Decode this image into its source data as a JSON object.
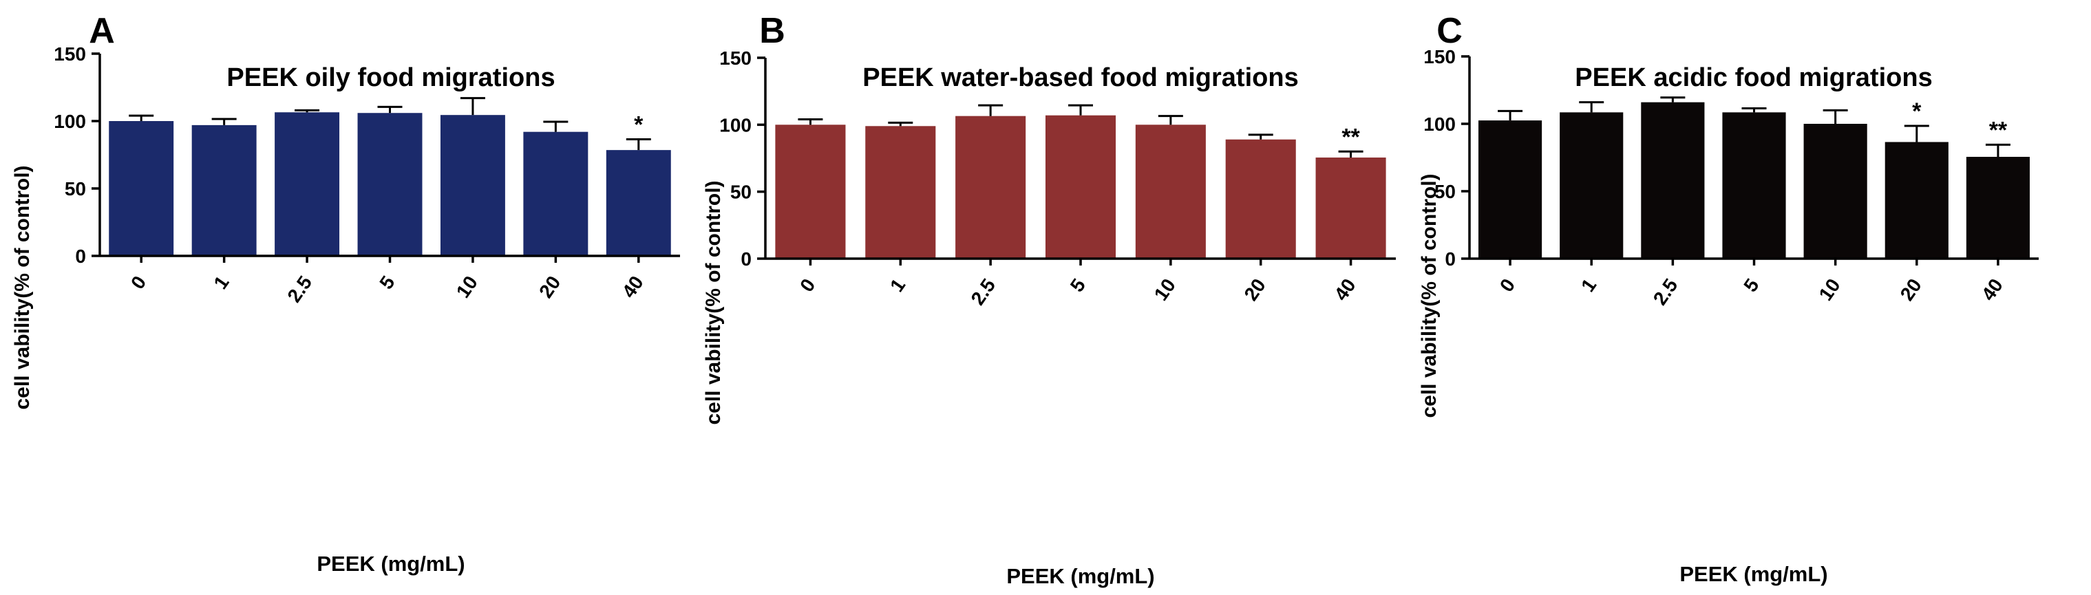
{
  "chart_data": [
    {
      "panel": "A",
      "type": "bar",
      "title": "PEEK oily food migrations",
      "xlabel": "PEEK (mg/mL)",
      "ylabel": "cell vability(% of control)",
      "categories": [
        "0",
        "1",
        "2.5",
        "5",
        "10",
        "20",
        "40"
      ],
      "values": [
        100,
        97,
        106.5,
        106,
        104.5,
        92,
        78.5
      ],
      "errors": [
        4,
        4.5,
        1.5,
        4.5,
        12.5,
        7.5,
        8
      ],
      "significance": [
        "",
        "",
        "",
        "",
        "",
        "",
        "*"
      ],
      "ylim": [
        0,
        150
      ],
      "yticks": [
        "0",
        "50",
        "100",
        "150"
      ],
      "color": "#1b2a6b"
    },
    {
      "panel": "B",
      "type": "bar",
      "title": "PEEK water-based food migrations",
      "xlabel": "PEEK (mg/mL)",
      "ylabel": "cell vability(% of control)",
      "categories": [
        "0",
        "1",
        "2.5",
        "5",
        "10",
        "20",
        "40"
      ],
      "values": [
        100,
        99,
        106.5,
        107,
        100,
        89,
        75.5
      ],
      "errors": [
        4,
        2.5,
        8,
        7.5,
        6.5,
        3.5,
        4.5
      ],
      "significance": [
        "",
        "",
        "",
        "",
        "",
        "",
        "**"
      ],
      "ylim": [
        0,
        150
      ],
      "yticks": [
        "0",
        "50",
        "100",
        "150"
      ],
      "color": "#8e3131"
    },
    {
      "panel": "C",
      "type": "bar",
      "title": "PEEK acidic food migrations",
      "xlabel": "PEEK (mg/mL)",
      "ylabel": "cell vability(% of control)",
      "categories": [
        "0",
        "1",
        "2.5",
        "5",
        "10",
        "20",
        "40"
      ],
      "values": [
        102.5,
        108.5,
        116,
        108.5,
        100,
        86.5,
        75.5
      ],
      "errors": [
        7,
        7.5,
        3.5,
        3,
        10,
        12,
        9
      ],
      "significance": [
        "",
        "",
        "",
        "",
        "",
        "*",
        "**"
      ],
      "ylim": [
        0,
        150
      ],
      "yticks": [
        "0",
        "50",
        "100",
        "150"
      ],
      "color": "#0b0707"
    }
  ]
}
